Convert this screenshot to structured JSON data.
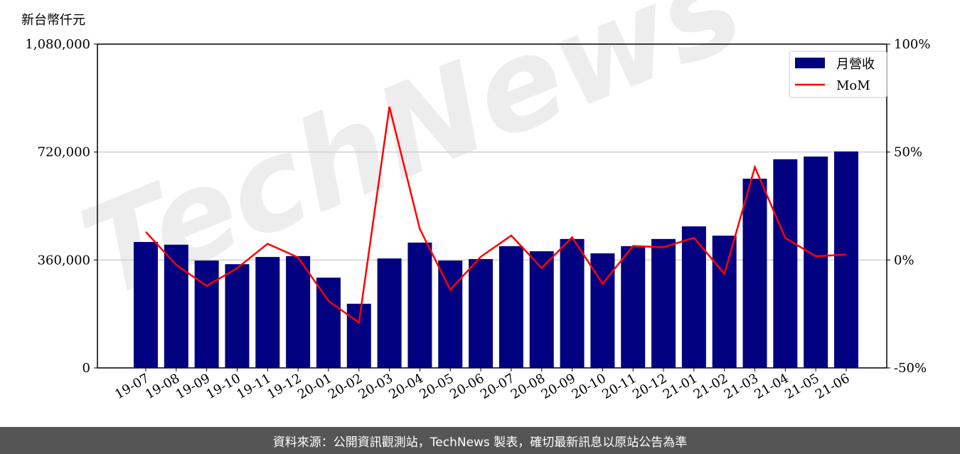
{
  "unit_label": "新台幣仟元",
  "footer": "資料來源：公開資訊觀測站，TechNews 製表，確切最新訊息以原站公告為準",
  "watermark": "TechNews",
  "chart_data": {
    "type": "bar+line",
    "title": "",
    "categories": [
      "19-07",
      "19-08",
      "19-09",
      "19-10",
      "19-11",
      "19-12",
      "20-01",
      "20-02",
      "20-03",
      "20-04",
      "20-05",
      "20-06",
      "20-07",
      "20-08",
      "20-09",
      "20-10",
      "20-11",
      "20-12",
      "21-01",
      "21-02",
      "21-03",
      "21-04",
      "21-05",
      "21-06"
    ],
    "series": [
      {
        "name": "月營收",
        "type": "bar",
        "axis": "left",
        "color": "#000080",
        "values": [
          420000,
          411000,
          358000,
          346000,
          370000,
          373000,
          301000,
          214000,
          365000,
          418000,
          358000,
          363000,
          406000,
          389000,
          430000,
          382000,
          406000,
          430000,
          472000,
          441000,
          631000,
          696000,
          705000,
          722000
        ]
      },
      {
        "name": "MoM",
        "type": "line",
        "axis": "right",
        "color": "#ff0000",
        "values": [
          13.0,
          -2.3,
          -12.0,
          -3.8,
          7.5,
          1.2,
          -19.0,
          -29.0,
          71.0,
          14.3,
          -13.8,
          1.5,
          11.3,
          -3.7,
          10.5,
          -11.0,
          6.5,
          5.9,
          10.3,
          -6.4,
          43.0,
          10.2,
          1.7,
          2.5
        ]
      }
    ],
    "y_left": {
      "min": 0,
      "max": 1080000,
      "ticks": [
        0,
        360000,
        720000,
        1080000
      ],
      "tick_labels": [
        "0",
        "360,000",
        "720,000",
        "1,080,000"
      ]
    },
    "y_right": {
      "min": -50,
      "max": 100,
      "ticks": [
        -50,
        0,
        50,
        100
      ],
      "tick_labels": [
        "-50%",
        "0%",
        "50%",
        "100%"
      ]
    },
    "grid": "horizontal",
    "legend": "top-right",
    "grid_color": "#d0d0d0"
  }
}
